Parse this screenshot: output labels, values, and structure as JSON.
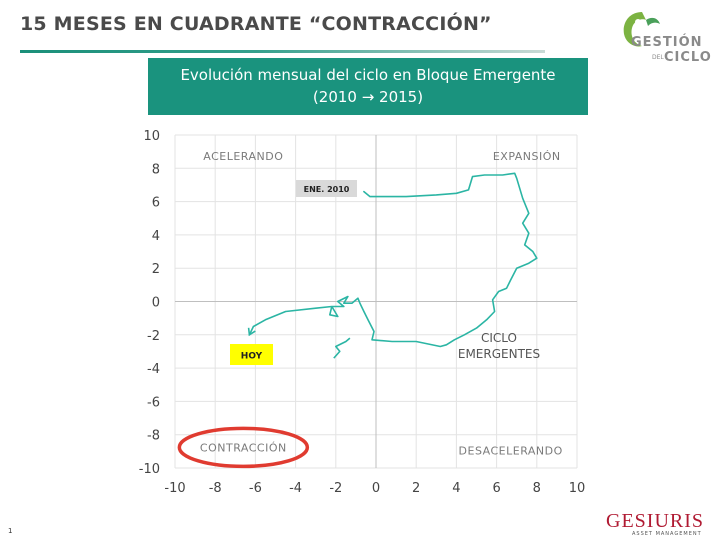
{
  "header": {
    "title": "15 MESES EN CUADRANTE “CONTRACCIÓN”"
  },
  "logo": {
    "line1": "GESTIÓN",
    "small": "DEL",
    "line2": "CICLO",
    "color": "#1a937e"
  },
  "banner": {
    "line1": "Evolución mensual del ciclo en Bloque Emergente",
    "line2": "(2010 → 2015)",
    "color": "#1a937e"
  },
  "chart_data": {
    "type": "line",
    "title": "",
    "xlabel": "",
    "ylabel": "",
    "xlim": [
      -10,
      10
    ],
    "ylim": [
      -10,
      10
    ],
    "x_ticks": [
      -10,
      -8,
      -6,
      -4,
      -2,
      0,
      2,
      4,
      6,
      8,
      10
    ],
    "y_ticks": [
      10,
      8,
      6,
      4,
      2,
      0,
      -2,
      -4,
      -6,
      -8,
      -10
    ],
    "grid": true,
    "line_color": "#2bb5a4",
    "series": [
      {
        "name": "CICLO EMERGENTES",
        "points": [
          [
            -0.6,
            6.6
          ],
          [
            -0.3,
            6.3
          ],
          [
            1.5,
            6.3
          ],
          [
            3.0,
            6.4
          ],
          [
            4.0,
            6.5
          ],
          [
            4.6,
            6.7
          ],
          [
            4.8,
            7.5
          ],
          [
            5.4,
            7.6
          ],
          [
            6.3,
            7.6
          ],
          [
            6.9,
            7.7
          ],
          [
            7.0,
            7.4
          ],
          [
            7.3,
            6.2
          ],
          [
            7.6,
            5.3
          ],
          [
            7.3,
            4.7
          ],
          [
            7.6,
            4.1
          ],
          [
            7.4,
            3.4
          ],
          [
            7.8,
            3.0
          ],
          [
            8.0,
            2.6
          ],
          [
            7.6,
            2.3
          ],
          [
            7.0,
            2.0
          ],
          [
            6.7,
            1.3
          ],
          [
            6.5,
            0.8
          ],
          [
            6.1,
            0.6
          ],
          [
            5.8,
            0.1
          ],
          [
            5.9,
            -0.6
          ],
          [
            5.5,
            -1.1
          ],
          [
            5.0,
            -1.6
          ],
          [
            4.4,
            -2.0
          ],
          [
            3.9,
            -2.3
          ],
          [
            3.5,
            -2.6
          ],
          [
            3.2,
            -2.7
          ],
          [
            2.0,
            -2.4
          ],
          [
            0.8,
            -2.4
          ],
          [
            -0.2,
            -2.3
          ],
          [
            -0.1,
            -1.8
          ],
          [
            -0.4,
            -1.1
          ],
          [
            -0.6,
            -0.6
          ],
          [
            -0.8,
            -0.1
          ],
          [
            -0.9,
            0.2
          ],
          [
            -1.2,
            -0.1
          ],
          [
            -1.6,
            -0.1
          ],
          [
            -1.4,
            0.3
          ],
          [
            -1.9,
            0.0
          ],
          [
            -1.6,
            -0.3
          ],
          [
            -2.2,
            -0.3
          ],
          [
            -1.9,
            -0.9
          ],
          [
            -2.3,
            -0.8
          ],
          [
            -2.2,
            -0.3
          ],
          [
            -3.0,
            -0.4
          ],
          [
            -4.5,
            -0.6
          ],
          [
            -5.5,
            -1.1
          ],
          [
            -6.1,
            -1.5
          ],
          [
            -6.3,
            -2.0
          ]
        ]
      }
    ],
    "extra_segment": [
      [
        -2.1,
        -3.4
      ],
      [
        -1.8,
        -3.0
      ],
      [
        -2.0,
        -2.7
      ],
      [
        -1.5,
        -2.4
      ],
      [
        -1.3,
        -2.2
      ]
    ],
    "quadrant_labels": {
      "top_left": "ACELERANDO",
      "top_right": "EXPANSIÓN",
      "bottom_left": "CONTRACCIÓN",
      "bottom_right": "DESACELERANDO"
    },
    "annotations": {
      "start_label": "ENE. 2010",
      "end_label": "HOY",
      "series_label_line1": "CICLO",
      "series_label_line2": "EMERGENTES",
      "start_bg": "#d9d9d9",
      "end_bg": "#ffff00",
      "highlight_color": "#e03b30"
    }
  },
  "footer": {
    "page_number": "1",
    "brand": "GESIURIS",
    "brand_sub": "ASSET MANAGEMENT",
    "brand_color": "#b01a32"
  }
}
